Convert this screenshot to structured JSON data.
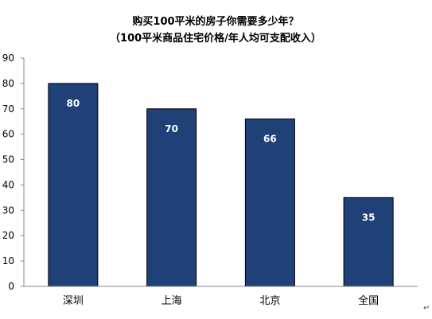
{
  "chart_data": {
    "type": "bar",
    "title": "购买100平米的房子你需要多少年？",
    "subtitle": "（100平米商品住宅价格/年人均可支配收入）",
    "categories": [
      "深圳",
      "上海",
      "北京",
      "全国"
    ],
    "values": [
      80,
      70,
      66,
      35
    ],
    "data_labels": [
      "80",
      "70",
      "66",
      "35"
    ],
    "ylim": [
      0,
      90
    ],
    "yticks": [
      0,
      10,
      20,
      30,
      40,
      50,
      60,
      70,
      80,
      90
    ],
    "ytick_labels": [
      "0",
      "10",
      "20",
      "30",
      "40",
      "50",
      "60",
      "70",
      "80",
      "90"
    ],
    "xlabel": "",
    "ylabel": "",
    "grid": false,
    "legend": "none",
    "bar_color": "#1f4178",
    "bar_edge_color": "#000000"
  },
  "trailing_mark": "↵"
}
